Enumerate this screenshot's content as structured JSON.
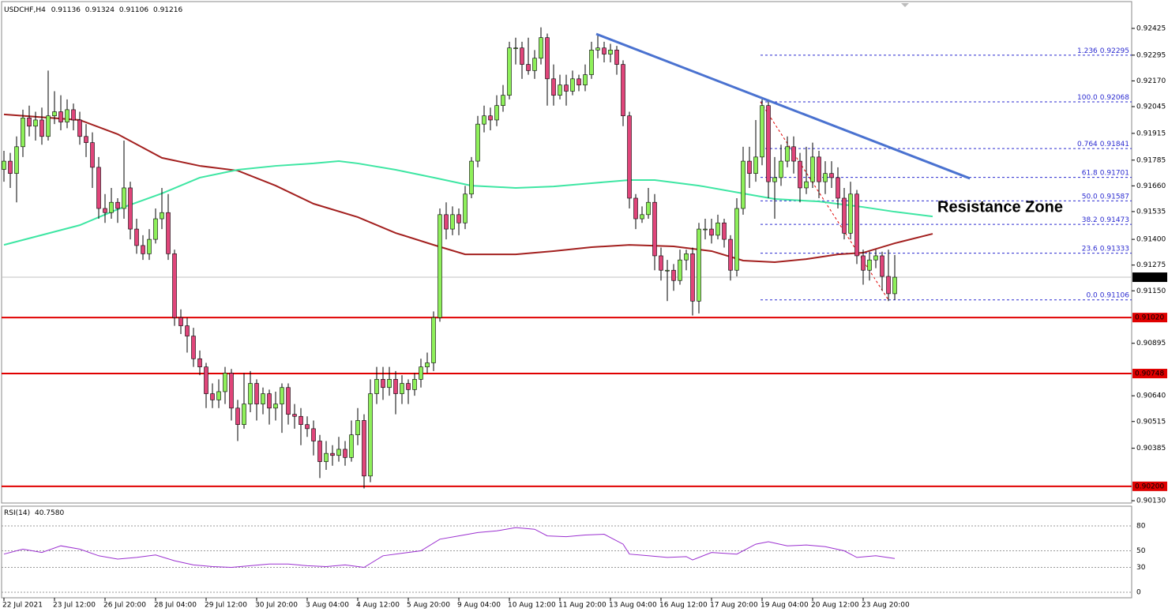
{
  "chart_data": {
    "type": "candlestick",
    "symbol": "USDCHF,H4",
    "annotation": "Resistance Zone",
    "ylim": [
      0.90115,
      0.92563
    ],
    "yticks": [
      0.92425,
      0.92295,
      {
        "value": 0.9217,
        "label": "0.92170"
      },
      0.92045,
      0.91915,
      0.91785,
      {
        "value": 0.9166,
        "label": "0.91660"
      },
      0.91535,
      {
        "value": 0.914,
        "label": "0.91400"
      },
      0.91275,
      {
        "value": 0.9115,
        "label": "0.91150"
      },
      0.90895,
      {
        "value": 0.9064,
        "label": "0.90640"
      },
      0.90515,
      0.90385,
      {
        "value": 0.9013,
        "label": "0.90130"
      }
    ],
    "xticks": [
      {
        "value": 0,
        "label": "22 Jul 2021"
      },
      {
        "value": 8,
        "label": "23 Jul 12:00"
      },
      {
        "value": 16,
        "label": "26 Jul 20:00"
      },
      {
        "value": 24,
        "label": "28 Jul 04:00"
      },
      {
        "value": 32,
        "label": "29 Jul 12:00"
      },
      {
        "value": 40,
        "label": "30 Jul 20:00"
      },
      {
        "value": 48,
        "label": "3 Aug 04:00"
      },
      {
        "value": 56,
        "label": "4 Aug 12:00"
      },
      {
        "value": 64,
        "label": "5 Aug 20:00"
      },
      {
        "value": 72,
        "label": "9 Aug 04:00"
      },
      {
        "value": 80,
        "label": "10 Aug 12:00"
      },
      {
        "value": 88,
        "label": "11 Aug 20:00"
      },
      {
        "value": 96,
        "label": "13 Aug 04:00"
      },
      {
        "value": 104,
        "label": "16 Aug 12:00"
      },
      {
        "value": 112,
        "label": "17 Aug 20:00"
      },
      {
        "value": 120,
        "label": "19 Aug 04:00"
      },
      {
        "value": 128,
        "label": "20 Aug 12:00"
      },
      {
        "value": 136,
        "label": "23 Aug 20:00"
      }
    ],
    "bull_color": "#8ef05a",
    "bear_color": "#e0457a",
    "ohlc": [
      [
        0.9174,
        0.9183,
        0.9168,
        0.9178
      ],
      [
        0.9178,
        0.9182,
        0.9165,
        0.9172
      ],
      [
        0.9172,
        0.919,
        0.9158,
        0.9185
      ],
      [
        0.9185,
        0.9203,
        0.918,
        0.9199
      ],
      [
        0.9199,
        0.9205,
        0.919,
        0.9195
      ],
      [
        0.9195,
        0.9202,
        0.9188,
        0.9198
      ],
      [
        0.9198,
        0.9204,
        0.9186,
        0.919
      ],
      [
        0.919,
        0.9222,
        0.9188,
        0.92
      ],
      [
        0.92,
        0.9212,
        0.9196,
        0.9202
      ],
      [
        0.9202,
        0.921,
        0.9193,
        0.9197
      ],
      [
        0.9197,
        0.9208,
        0.9194,
        0.9203
      ],
      [
        0.9203,
        0.9206,
        0.9193,
        0.9198
      ],
      [
        0.9198,
        0.9202,
        0.9186,
        0.919
      ],
      [
        0.919,
        0.9196,
        0.918,
        0.9187
      ],
      [
        0.9187,
        0.9192,
        0.9165,
        0.9175
      ],
      [
        0.9175,
        0.918,
        0.915,
        0.9155
      ],
      [
        0.9155,
        0.9162,
        0.9148,
        0.9153
      ],
      [
        0.9153,
        0.9165,
        0.915,
        0.9158
      ],
      [
        0.9158,
        0.916,
        0.9148,
        0.9155
      ],
      [
        0.9155,
        0.9188,
        0.915,
        0.9165
      ],
      [
        0.9165,
        0.9168,
        0.914,
        0.9145
      ],
      [
        0.9145,
        0.915,
        0.9133,
        0.9137
      ],
      [
        0.9137,
        0.9142,
        0.913,
        0.9133
      ],
      [
        0.9133,
        0.9145,
        0.913,
        0.914
      ],
      [
        0.914,
        0.9155,
        0.9138,
        0.915
      ],
      [
        0.915,
        0.9165,
        0.9145,
        0.9153
      ],
      [
        0.9153,
        0.9162,
        0.913,
        0.9133
      ],
      [
        0.9133,
        0.9135,
        0.9098,
        0.9102
      ],
      [
        0.9102,
        0.9106,
        0.9094,
        0.9098
      ],
      [
        0.9098,
        0.9102,
        0.9085,
        0.9093
      ],
      [
        0.9093,
        0.9097,
        0.9078,
        0.9082
      ],
      [
        0.9082,
        0.9086,
        0.9074,
        0.9078
      ],
      [
        0.9078,
        0.908,
        0.9058,
        0.9065
      ],
      [
        0.9065,
        0.907,
        0.9058,
        0.9062
      ],
      [
        0.9062,
        0.9072,
        0.9058,
        0.9066
      ],
      [
        0.9066,
        0.9078,
        0.906,
        0.9075
      ],
      [
        0.9075,
        0.9077,
        0.9052,
        0.9058
      ],
      [
        0.9058,
        0.9062,
        0.9042,
        0.905
      ],
      [
        0.905,
        0.9075,
        0.9048,
        0.906
      ],
      [
        0.906,
        0.9076,
        0.9056,
        0.907
      ],
      [
        0.907,
        0.9072,
        0.9052,
        0.906
      ],
      [
        0.906,
        0.9068,
        0.9055,
        0.9065
      ],
      [
        0.9065,
        0.9067,
        0.905,
        0.9058
      ],
      [
        0.9058,
        0.9066,
        0.9052,
        0.906
      ],
      [
        0.906,
        0.907,
        0.9046,
        0.9068
      ],
      [
        0.9068,
        0.907,
        0.905,
        0.9055
      ],
      [
        0.9055,
        0.906,
        0.9048,
        0.9054
      ],
      [
        0.9054,
        0.9058,
        0.904,
        0.905
      ],
      [
        0.905,
        0.9054,
        0.9044,
        0.9048
      ],
      [
        0.9048,
        0.9052,
        0.9035,
        0.9042
      ],
      [
        0.9042,
        0.9045,
        0.9024,
        0.9032
      ],
      [
        0.9032,
        0.9042,
        0.9028,
        0.9036
      ],
      [
        0.9036,
        0.904,
        0.903,
        0.9035
      ],
      [
        0.9035,
        0.9044,
        0.9032,
        0.9038
      ],
      [
        0.9038,
        0.9042,
        0.903,
        0.9034
      ],
      [
        0.9034,
        0.9052,
        0.9032,
        0.9045
      ],
      [
        0.9045,
        0.9058,
        0.904,
        0.9052
      ],
      [
        0.9052,
        0.9055,
        0.9019,
        0.9025
      ],
      [
        0.9025,
        0.9072,
        0.9022,
        0.9065
      ],
      [
        0.9065,
        0.9078,
        0.906,
        0.9072
      ],
      [
        0.9072,
        0.9078,
        0.9062,
        0.9068
      ],
      [
        0.9068,
        0.9078,
        0.9064,
        0.9072
      ],
      [
        0.9072,
        0.9076,
        0.9055,
        0.9065
      ],
      [
        0.9065,
        0.9074,
        0.906,
        0.907
      ],
      [
        0.907,
        0.9072,
        0.906,
        0.9067
      ],
      [
        0.9067,
        0.9075,
        0.9064,
        0.9072
      ],
      [
        0.9072,
        0.9082,
        0.9068,
        0.9078
      ],
      [
        0.9078,
        0.9085,
        0.9075,
        0.908
      ],
      [
        0.908,
        0.9105,
        0.9076,
        0.9102
      ],
      [
        0.9102,
        0.9155,
        0.91,
        0.9152
      ],
      [
        0.9152,
        0.9158,
        0.914,
        0.9145
      ],
      [
        0.9145,
        0.9156,
        0.9142,
        0.9152
      ],
      [
        0.9152,
        0.9155,
        0.9142,
        0.9148
      ],
      [
        0.9148,
        0.9166,
        0.9145,
        0.9162
      ],
      [
        0.9162,
        0.918,
        0.916,
        0.9178
      ],
      [
        0.9178,
        0.92,
        0.9175,
        0.9196
      ],
      [
        0.9196,
        0.9205,
        0.9192,
        0.92
      ],
      [
        0.92,
        0.9204,
        0.9193,
        0.9198
      ],
      [
        0.9198,
        0.921,
        0.9195,
        0.9205
      ],
      [
        0.9205,
        0.9215,
        0.9202,
        0.921
      ],
      [
        0.921,
        0.9236,
        0.9208,
        0.9233
      ],
      [
        0.9233,
        0.9238,
        0.9225,
        0.9233
      ],
      [
        0.9233,
        0.9236,
        0.9218,
        0.9225
      ],
      [
        0.9225,
        0.9238,
        0.922,
        0.9222
      ],
      [
        0.9222,
        0.9232,
        0.9218,
        0.9228
      ],
      [
        0.9228,
        0.9243,
        0.9225,
        0.9238
      ],
      [
        0.9238,
        0.924,
        0.9205,
        0.9218
      ],
      [
        0.9218,
        0.9225,
        0.9205,
        0.921
      ],
      [
        0.921,
        0.922,
        0.9208,
        0.9215
      ],
      [
        0.9215,
        0.922,
        0.9205,
        0.9212
      ],
      [
        0.9212,
        0.9222,
        0.921,
        0.9218
      ],
      [
        0.9218,
        0.922,
        0.9212,
        0.9215
      ],
      [
        0.9215,
        0.9225,
        0.9212,
        0.922
      ],
      [
        0.922,
        0.9236,
        0.9218,
        0.9232
      ],
      [
        0.9232,
        0.924,
        0.9228,
        0.9233
      ],
      [
        0.9233,
        0.9236,
        0.9226,
        0.923
      ],
      [
        0.923,
        0.9235,
        0.9226,
        0.9232
      ],
      [
        0.9232,
        0.9234,
        0.922,
        0.9225
      ],
      [
        0.9225,
        0.9227,
        0.9195,
        0.92
      ],
      [
        0.92,
        0.9202,
        0.9155,
        0.916
      ],
      [
        0.916,
        0.9162,
        0.9145,
        0.915
      ],
      [
        0.915,
        0.9156,
        0.9148,
        0.9152
      ],
      [
        0.9152,
        0.9165,
        0.915,
        0.9158
      ],
      [
        0.9158,
        0.9162,
        0.9125,
        0.9132
      ],
      [
        0.9132,
        0.9136,
        0.912,
        0.9125
      ],
      [
        0.9125,
        0.913,
        0.911,
        0.9125
      ],
      [
        0.9125,
        0.9128,
        0.9115,
        0.912
      ],
      [
        0.912,
        0.9135,
        0.9118,
        0.913
      ],
      [
        0.913,
        0.9135,
        0.9125,
        0.9133
      ],
      [
        0.9133,
        0.9136,
        0.9103,
        0.911
      ],
      [
        0.911,
        0.9148,
        0.9104,
        0.9145
      ],
      [
        0.9145,
        0.915,
        0.914,
        0.9145
      ],
      [
        0.9145,
        0.915,
        0.9138,
        0.9142
      ],
      [
        0.9142,
        0.9152,
        0.914,
        0.9148
      ],
      [
        0.9148,
        0.915,
        0.9136,
        0.914
      ],
      [
        0.914,
        0.9142,
        0.912,
        0.9125
      ],
      [
        0.9125,
        0.916,
        0.9122,
        0.9155
      ],
      [
        0.9155,
        0.9185,
        0.9152,
        0.9178
      ],
      [
        0.9178,
        0.9185,
        0.9165,
        0.9172
      ],
      [
        0.9172,
        0.9198,
        0.9168,
        0.918
      ],
      [
        0.918,
        0.9208,
        0.9176,
        0.9205
      ],
      [
        0.9205,
        0.9208,
        0.916,
        0.9168
      ],
      [
        0.9168,
        0.918,
        0.915,
        0.917
      ],
      [
        0.917,
        0.9186,
        0.9166,
        0.9178
      ],
      [
        0.9178,
        0.919,
        0.9175,
        0.9185
      ],
      [
        0.9185,
        0.919,
        0.9172,
        0.9178
      ],
      [
        0.9178,
        0.9182,
        0.9158,
        0.9165
      ],
      [
        0.9165,
        0.9185,
        0.9162,
        0.9168
      ],
      [
        0.9168,
        0.9187,
        0.9165,
        0.918
      ],
      [
        0.918,
        0.9183,
        0.916,
        0.9168
      ],
      [
        0.9168,
        0.9178,
        0.9162,
        0.9172
      ],
      [
        0.9172,
        0.9178,
        0.9165,
        0.917
      ],
      [
        0.917,
        0.9175,
        0.9155,
        0.916
      ],
      [
        0.916,
        0.9165,
        0.914,
        0.9143
      ],
      [
        0.9143,
        0.9168,
        0.914,
        0.9162
      ],
      [
        0.9162,
        0.9164,
        0.9128,
        0.9132
      ],
      [
        0.9132,
        0.9135,
        0.9118,
        0.9125
      ],
      [
        0.9125,
        0.9134,
        0.912,
        0.913
      ],
      [
        0.913,
        0.9135,
        0.9126,
        0.9132
      ],
      [
        0.9132,
        0.9134,
        0.9115,
        0.9122
      ],
      [
        0.9122,
        0.9135,
        0.911,
        0.91136
      ],
      [
        0.91136,
        0.91324,
        0.91106,
        0.91216
      ]
    ],
    "lines": [
      {
        "color": "#a3201f",
        "x": [
          0,
          12,
          18,
          25,
          31,
          37,
          43,
          49,
          56,
          62,
          68,
          73,
          81,
          87,
          93,
          99,
          106,
          112,
          117,
          122,
          127,
          132,
          136,
          141,
          147
        ],
        "values": [
          0.92007,
          0.9198,
          0.91911,
          0.91796,
          0.91757,
          0.91734,
          0.91661,
          0.91573,
          0.91508,
          0.91431,
          0.91373,
          0.91327,
          0.91327,
          0.91343,
          0.91362,
          0.91373,
          0.91366,
          0.91343,
          0.91297,
          0.91289,
          0.91304,
          0.91327,
          0.91335,
          0.91381,
          0.91427
        ]
      },
      {
        "color": "#3ee6a3",
        "x": [
          0,
          12,
          18,
          25,
          31,
          37,
          43,
          49,
          53,
          56,
          62,
          68,
          74,
          81,
          87,
          93,
          99,
          103,
          110,
          117,
          122,
          129,
          136,
          141,
          147
        ],
        "values": [
          0.91373,
          0.91469,
          0.91546,
          0.91623,
          0.917,
          0.91738,
          0.91757,
          0.91769,
          0.9178,
          0.91769,
          0.91738,
          0.917,
          0.91661,
          0.9165,
          0.91657,
          0.91673,
          0.91688,
          0.91688,
          0.91661,
          0.91623,
          0.91596,
          0.91584,
          0.91557,
          0.91534,
          0.91511
        ]
      }
    ],
    "trendline": {
      "color": "#4a72d0",
      "x": [
        93.75,
        152.9
      ],
      "values": [
        0.92398,
        0.91696
      ]
    },
    "levels": {
      "color": "#e00000",
      "values": [
        {
          "value": 0.9102,
          "label": "0.91020"
        },
        {
          "value": 0.90748,
          "label": "0.90748"
        },
        {
          "value": 0.902,
          "label": "0.90200"
        }
      ]
    },
    "fib": {
      "color": "#2b2bd0",
      "levels": [
        {
          "ratio": "1.236",
          "price": 0.92295
        },
        {
          "ratio": "100.0",
          "price": 0.92068
        },
        {
          "ratio": "0.764",
          "price": 0.91841
        },
        {
          "ratio": "61.8",
          "price": 0.91701
        },
        {
          "ratio": "50.0",
          "price": 0.91587
        },
        {
          "ratio": "38.2",
          "price": 0.91473
        },
        {
          "ratio": "23.6",
          "price": 0.91333
        },
        {
          "ratio": "0.0",
          "price": 0.91106
        }
      ]
    },
    "rsi": {
      "title": "RSI(14)",
      "current": {
        "value": 40.758,
        "label": "40.7580"
      },
      "color": "#9b30d0",
      "ylim": [
        0,
        100
      ],
      "yticks": [
        80,
        50,
        30,
        0
      ],
      "x": [
        0,
        3,
        6,
        9,
        12,
        15,
        18,
        21,
        24,
        27,
        30,
        33,
        36,
        39,
        42,
        45,
        48,
        51,
        54,
        57,
        60,
        63,
        66,
        69,
        72,
        75,
        78,
        81,
        84,
        86,
        89,
        92,
        95,
        98,
        99,
        102,
        105,
        108,
        109,
        112,
        116,
        119,
        121,
        124,
        127,
        130,
        133,
        135,
        138,
        141
      ],
      "values": [
        46,
        52,
        48,
        56,
        52,
        44,
        40,
        42,
        45,
        38,
        33,
        31,
        30,
        32,
        34,
        34,
        32,
        31,
        33,
        30,
        44,
        47,
        50,
        64,
        68,
        72,
        74,
        78,
        76,
        68,
        67,
        69,
        70,
        58,
        46,
        44,
        42,
        43,
        39,
        48,
        46,
        58,
        61,
        56,
        57,
        55,
        50,
        42,
        44,
        40.758
      ]
    }
  }
}
